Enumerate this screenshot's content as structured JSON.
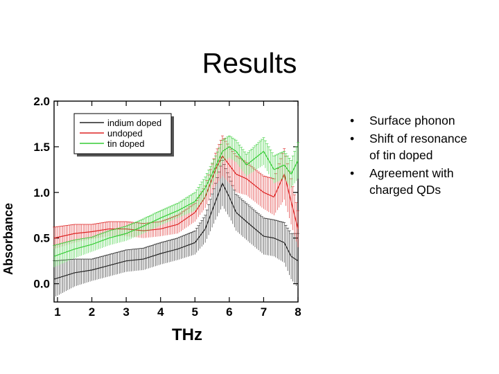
{
  "slide": {
    "title": "Results",
    "bullets": [
      {
        "text": "Surface phonon"
      },
      {
        "text": "Shift of resonance of tin doped"
      },
      {
        "text": "Agreement with charged QDs"
      }
    ]
  },
  "chart_data": {
    "type": "line",
    "xlabel": "THz",
    "ylabel": "Absorbance",
    "xlim": [
      0.9,
      8.0
    ],
    "ylim": [
      -0.2,
      2.0
    ],
    "x_ticks": [
      1,
      2,
      3,
      4,
      5,
      6,
      7,
      8
    ],
    "y_ticks": [
      0.0,
      0.5,
      1.0,
      1.5,
      2.0
    ],
    "y_tick_labels": [
      "0.0",
      "0.5",
      "1.0",
      "1.5",
      "2.0"
    ],
    "legend_position": "top-left",
    "error_bars": true,
    "series": [
      {
        "name": "indium doped",
        "color": "#222222",
        "x": [
          0.9,
          1.5,
          2.0,
          2.5,
          3.0,
          3.5,
          4.0,
          4.5,
          5.0,
          5.3,
          5.6,
          5.8,
          6.0,
          6.2,
          6.5,
          7.0,
          7.3,
          7.6,
          7.8,
          8.0
        ],
        "y": [
          0.05,
          0.12,
          0.15,
          0.2,
          0.25,
          0.27,
          0.33,
          0.38,
          0.45,
          0.6,
          0.9,
          1.1,
          0.95,
          0.78,
          0.68,
          0.52,
          0.5,
          0.45,
          0.3,
          0.25
        ],
        "err": [
          0.2,
          0.15,
          0.12,
          0.12,
          0.12,
          0.12,
          0.12,
          0.12,
          0.13,
          0.15,
          0.2,
          0.25,
          0.22,
          0.2,
          0.2,
          0.2,
          0.2,
          0.22,
          0.25,
          0.3
        ]
      },
      {
        "name": "undoped",
        "color": "#dd2222",
        "x": [
          0.9,
          1.5,
          2.0,
          2.5,
          3.0,
          3.5,
          4.0,
          4.5,
          5.0,
          5.3,
          5.6,
          5.8,
          6.0,
          6.2,
          6.5,
          7.0,
          7.3,
          7.6,
          7.8,
          8.0
        ],
        "y": [
          0.5,
          0.55,
          0.57,
          0.6,
          0.6,
          0.58,
          0.6,
          0.65,
          0.78,
          0.95,
          1.25,
          1.4,
          1.3,
          1.2,
          1.15,
          1.0,
          0.95,
          1.2,
          0.9,
          0.6
        ],
        "err": [
          0.12,
          0.1,
          0.08,
          0.08,
          0.08,
          0.08,
          0.08,
          0.1,
          0.1,
          0.12,
          0.18,
          0.22,
          0.2,
          0.2,
          0.18,
          0.18,
          0.2,
          0.28,
          0.25,
          0.2
        ]
      },
      {
        "name": "tin doped",
        "color": "#33cc33",
        "x": [
          0.9,
          1.5,
          2.0,
          2.5,
          3.0,
          3.5,
          4.0,
          4.5,
          5.0,
          5.3,
          5.6,
          5.8,
          6.0,
          6.2,
          6.5,
          7.0,
          7.3,
          7.6,
          7.8,
          8.0
        ],
        "y": [
          0.3,
          0.38,
          0.43,
          0.5,
          0.55,
          0.63,
          0.72,
          0.8,
          0.9,
          1.05,
          1.28,
          1.45,
          1.5,
          1.45,
          1.3,
          1.45,
          1.25,
          1.3,
          1.2,
          1.35
        ],
        "err": [
          0.12,
          0.1,
          0.08,
          0.08,
          0.08,
          0.08,
          0.08,
          0.08,
          0.1,
          0.12,
          0.12,
          0.12,
          0.12,
          0.12,
          0.12,
          0.15,
          0.15,
          0.15,
          0.15,
          0.2
        ]
      }
    ]
  }
}
